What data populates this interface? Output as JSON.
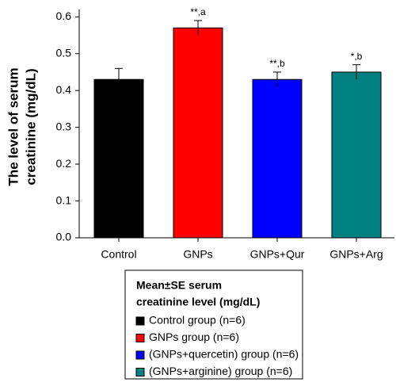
{
  "chart_data": {
    "type": "bar",
    "ylabel": [
      "The level of serum",
      "creatinine (mg/dL)"
    ],
    "categories": [
      "Control",
      "GNPs",
      "GNPs+Qur",
      "GNPs+Arg"
    ],
    "values": [
      0.43,
      0.57,
      0.43,
      0.45
    ],
    "errors": [
      0.03,
      0.02,
      0.02,
      0.02
    ],
    "annotations": [
      null,
      "**,a",
      "**,b",
      "*,b"
    ],
    "colors": [
      "#000000",
      "#ff0000",
      "#0000ff",
      "#008080"
    ],
    "ylim": [
      0,
      0.62
    ],
    "yticks": [
      {
        "value": 0,
        "label": "0.0"
      },
      0.1,
      0.2,
      0.3,
      0.4,
      0.5,
      0.6
    ],
    "legend": {
      "title": [
        "Mean±SE serum",
        "creatinine level (mg/dL)"
      ],
      "entries": [
        "Control group (n=6)",
        "GNPs group (n=6)",
        "(GNPs+quercetin) group (n=6)",
        "(GNPs+arginine) group (n=6)"
      ]
    }
  }
}
